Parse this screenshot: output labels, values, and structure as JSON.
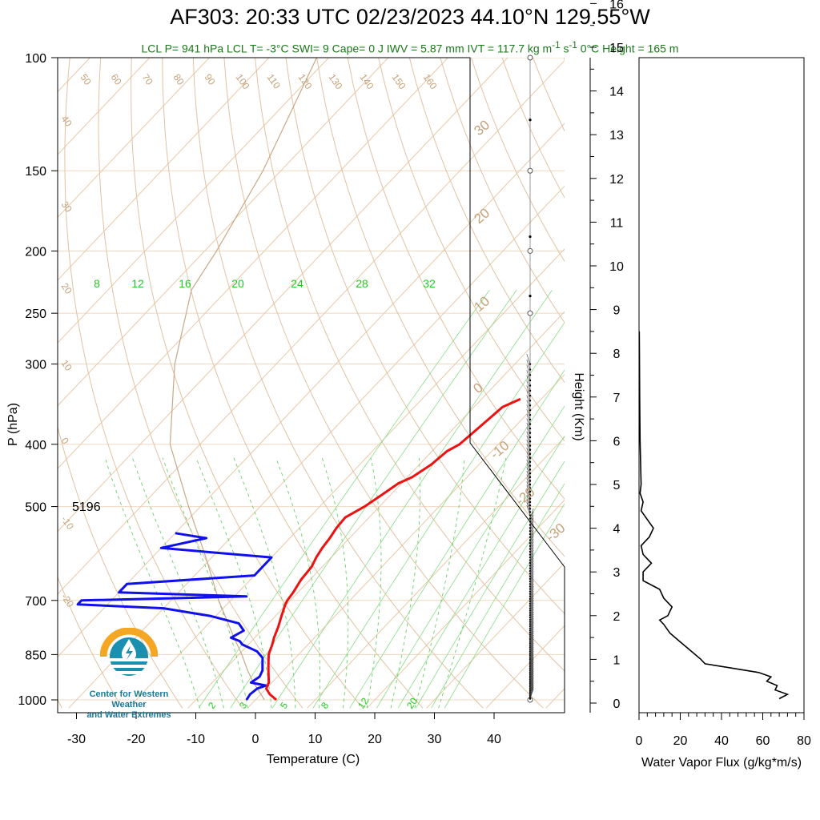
{
  "title": "AF303: 20:33 UTC 02/23/2023  44.10°N 129.55°W",
  "subtitle": "LCL P= 941 hPa  LCL T= -3°C  SWI= 9  Cape= 0 J  IWV = 5.87 mm  IVT = 117.7 kg m-1 s-1  0°C Height = 165 m",
  "logo": {
    "text_line1": "Center for Western Weather",
    "text_line2": "and Water Extremes",
    "icon": "water-drop-logo-icon"
  },
  "colors": {
    "temperature": "#ee1111",
    "dewpoint": "#1010ee",
    "isotherm": "#e8c8a8",
    "mixing_ratio": "#22cc22",
    "dry_adiabat": "#c4a27a"
  },
  "chart_data": [
    {
      "type": "line",
      "name": "skew-t",
      "xlabel": "Temperature (C)",
      "ylabel": "P (hPa)",
      "xlim": [
        -34,
        51
      ],
      "ylim": [
        1030,
        100
      ],
      "yscale": "log",
      "x_ticks": [
        -30,
        -20,
        -10,
        0,
        10,
        20,
        30,
        40
      ],
      "y_ticks": [
        100,
        150,
        200,
        250,
        300,
        400,
        500,
        700,
        850,
        1000
      ],
      "dry_adiabat_labels": [
        "50",
        "60",
        "70",
        "80",
        "90",
        "100",
        "110",
        "120",
        "130",
        "140",
        "150",
        "160"
      ],
      "isotherm_labels_left": [
        "40",
        "30",
        "20",
        "10",
        "0",
        "-10",
        "-20"
      ],
      "isotherm_labels_right": [
        "30",
        "20",
        "10",
        "0",
        "-10",
        "-20",
        "-30"
      ],
      "mixing_ratio_labels_top": [
        "8",
        "12",
        "16",
        "20",
        "24",
        "28",
        "32"
      ],
      "mixing_ratio_labels_bottom": [
        "2",
        "3",
        "5",
        "8",
        "12",
        "20"
      ],
      "annotation": "5196",
      "series": [
        {
          "name": "temperature",
          "p": [
            1000,
            980,
            960,
            940,
            920,
            900,
            880,
            860,
            850,
            820,
            800,
            770,
            740,
            710,
            700,
            680,
            650,
            620,
            600,
            580,
            560,
            540,
            520,
            500,
            480,
            460,
            450,
            430,
            410,
            400,
            380,
            360,
            350,
            340
          ],
          "t": [
            3.5,
            1.5,
            0,
            -0.5,
            -1.5,
            -2.5,
            -3.5,
            -4.5,
            -5.0,
            -6.0,
            -6.8,
            -7.8,
            -9.0,
            -10.2,
            -10.5,
            -10.8,
            -11.5,
            -11.8,
            -12.5,
            -13.0,
            -13.3,
            -13.8,
            -14.0,
            -12.5,
            -11.5,
            -10.5,
            -9.2,
            -8.0,
            -7.5,
            -6.5,
            -6.0,
            -5.5,
            -5.2,
            -3.5
          ]
        },
        {
          "name": "dewpoint",
          "p": [
            1000,
            980,
            960,
            950,
            940,
            920,
            900,
            880,
            860,
            850,
            840,
            820,
            810,
            800,
            780,
            760,
            740,
            720,
            710,
            700,
            690,
            680,
            660,
            640,
            620,
            600,
            580,
            560,
            550
          ],
          "td": [
            -1.5,
            -1.8,
            -1.5,
            -0.5,
            -3.5,
            -3.0,
            -3.5,
            -4.5,
            -5.5,
            -6.5,
            -7.5,
            -11,
            -12,
            -14,
            -13,
            -15,
            -21,
            -30,
            -45,
            -45,
            -18,
            -40,
            -40,
            -20,
            -20,
            -20,
            -40,
            -34,
            -40
          ]
        },
        {
          "name": "parcel",
          "p": [
            1000,
            941,
            900,
            850,
            800,
            700,
            600,
            500,
            400,
            300,
            230,
            200,
            150,
            100
          ],
          "t": [
            1.5,
            -3.0,
            -6.0,
            -9.5,
            -13.5,
            -22.0,
            -31.0,
            -42.0,
            -55.0,
            -67.0,
            -76.0,
            -78.0,
            -83.0,
            -92.0
          ]
        }
      ]
    },
    {
      "type": "line",
      "name": "water-vapor-flux",
      "xlabel": "Water Vapor Flux (g/kg*m/s)",
      "ylabel": "Height (Km)",
      "xlim": [
        0,
        80
      ],
      "ylim": [
        0,
        16.5
      ],
      "x_ticks": [
        0,
        20,
        40,
        60,
        80
      ],
      "y_ticks": [
        0,
        1,
        2,
        3,
        4,
        5,
        6,
        7,
        8,
        9,
        10,
        11,
        12,
        13,
        14,
        15,
        16
      ],
      "series": [
        {
          "name": "flux",
          "height_km": [
            0.1,
            0.2,
            0.3,
            0.4,
            0.5,
            0.6,
            0.7,
            0.8,
            0.9,
            1.0,
            1.2,
            1.4,
            1.6,
            1.8,
            1.9,
            2.0,
            2.2,
            2.4,
            2.6,
            2.8,
            3.0,
            3.2,
            3.4,
            3.6,
            3.8,
            4.0,
            4.2,
            4.4,
            4.6,
            4.8,
            5.0,
            6.0,
            7.0,
            8.0,
            8.5
          ],
          "flux": [
            68,
            72,
            66,
            67,
            62,
            64,
            58,
            45,
            32,
            30,
            25,
            20,
            15,
            12,
            10,
            14,
            16,
            12,
            10,
            2,
            2,
            6,
            2,
            1,
            5,
            7,
            4,
            1,
            2,
            0.5,
            1,
            0.5,
            0.3,
            0.2,
            0.1
          ]
        }
      ]
    }
  ]
}
